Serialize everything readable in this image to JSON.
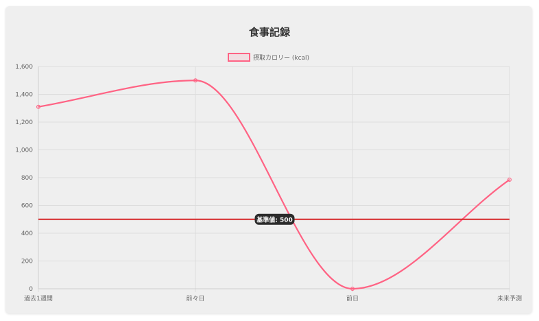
{
  "chart_data": {
    "type": "line",
    "title": "食事記録",
    "categories": [
      "過去1週間",
      "前々日",
      "前日",
      "未来予測"
    ],
    "series": [
      {
        "name": "摂取カロリー (kcal)",
        "values": [
          1310,
          1500,
          0,
          785
        ],
        "color": "#ff6384"
      }
    ],
    "ylim": [
      0,
      1600
    ],
    "yticks": [
      0,
      200,
      400,
      600,
      800,
      1000,
      1200,
      1400,
      1600
    ],
    "ytick_labels": [
      "0",
      "200",
      "400",
      "600",
      "800",
      "1,000",
      "1,200",
      "1,400",
      "1,600"
    ],
    "legend_position": "top",
    "grid": true,
    "reference_line": {
      "value": 500,
      "label": "基準値: 500",
      "color": "#d62728"
    }
  }
}
